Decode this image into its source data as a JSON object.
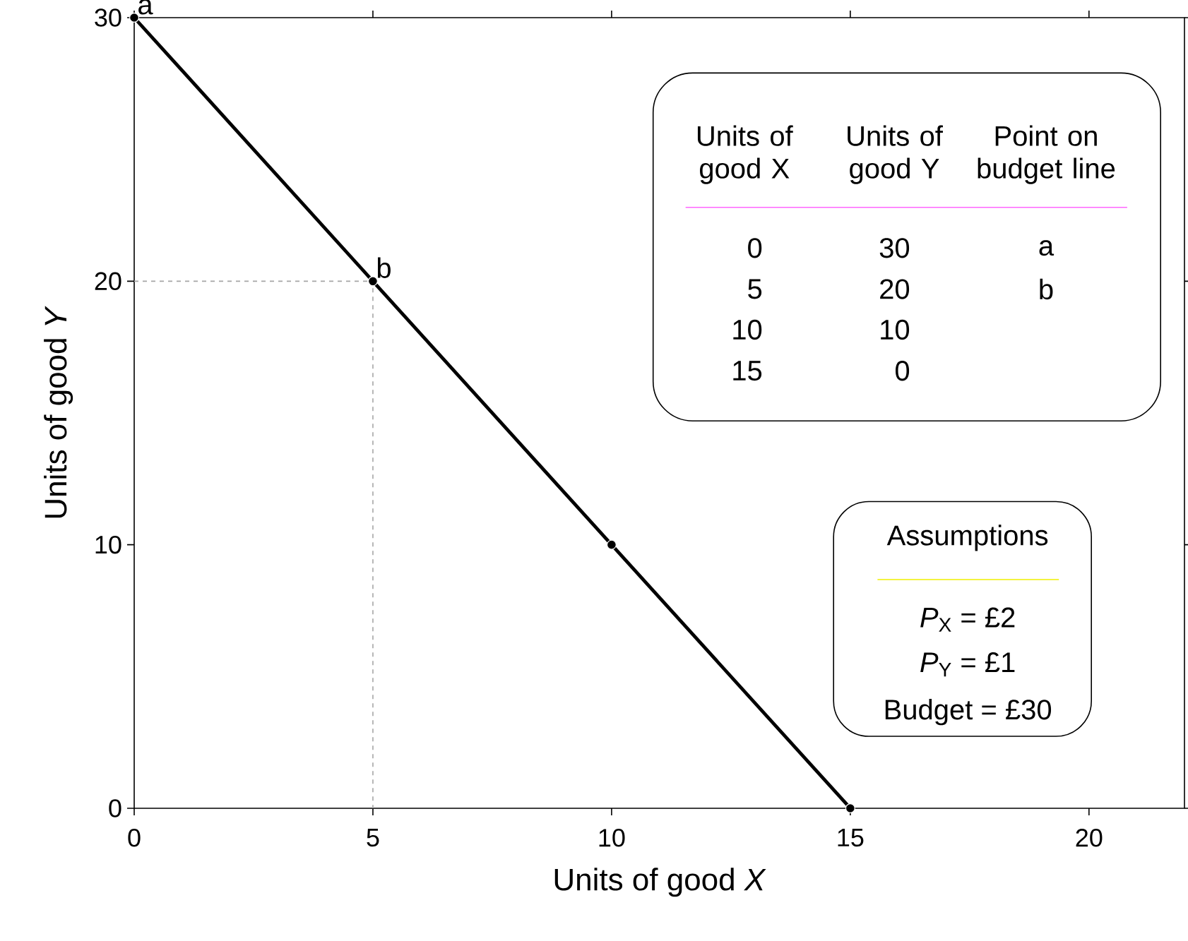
{
  "chart_data": {
    "type": "line",
    "xlabel": "Units of good *X*",
    "ylabel": "Units of good *Y*",
    "xlim": [
      0,
      22
    ],
    "ylim": [
      0,
      30
    ],
    "xticks": [
      0,
      5,
      10,
      15,
      20
    ],
    "yticks": [
      0,
      10,
      20,
      30
    ],
    "grid": false,
    "marker": "circle",
    "line_style": "solid",
    "series": [
      {
        "x": [
          0,
          5,
          10,
          15
        ],
        "values": [
          30,
          20,
          10,
          0
        ],
        "color": "#000000"
      },
      {
        "x": [
          0,
          5,
          5
        ],
        "values": [
          20,
          20,
          0
        ],
        "color": "#a6a6a6",
        "line_style": "dashed",
        "marker": "none"
      }
    ],
    "annotations": [
      {
        "text": "a",
        "x": 0,
        "y": 30
      },
      {
        "text": "b",
        "x": 5,
        "y": 20
      },
      "Units of good X",
      "Units of good Y",
      "Point on budget line",
      "0",
      "30",
      "a",
      "5",
      "20",
      "b",
      "10",
      "10",
      "15",
      "0",
      "Assumptions",
      "*P*$_{X}$ = £2",
      "*P*$_{Y}$ =  £1",
      "Budget = £30"
    ]
  }
}
